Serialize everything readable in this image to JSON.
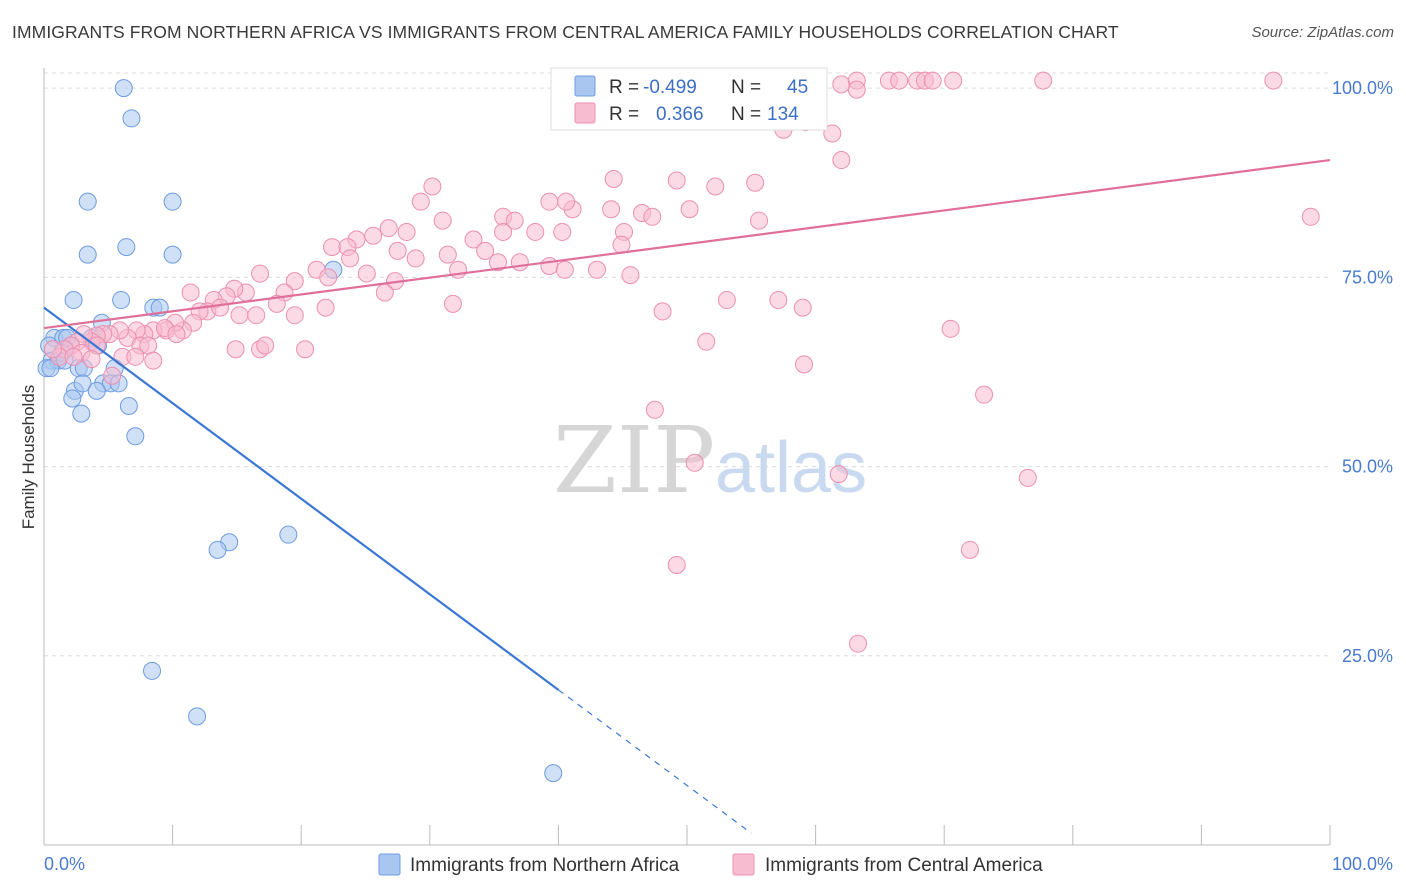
{
  "header": {
    "title": "IMMIGRANTS FROM NORTHERN AFRICA VS IMMIGRANTS FROM CENTRAL AMERICA FAMILY HOUSEHOLDS CORRELATION CHART",
    "source": "Source: ZipAtlas.com"
  },
  "watermark": {
    "zip": "ZIP",
    "atlas": "atlas"
  },
  "legend": {
    "r_label": "R =",
    "n_label": "N =",
    "entries": [
      {
        "r": "-0.499",
        "n": "45",
        "color": "#a9c6f0",
        "stroke": "#6d9ce0"
      },
      {
        "r": "0.366",
        "n": "134",
        "color": "#f7bcd0",
        "stroke": "#ec8fb0"
      }
    ]
  },
  "chart_data": {
    "type": "scatter",
    "title": "IMMIGRANTS FROM NORTHERN AFRICA VS IMMIGRANTS FROM CENTRAL AMERICA FAMILY HOUSEHOLDS CORRELATION CHART",
    "xlabel": "",
    "ylabel": "Family Households",
    "xlim": [
      0,
      100
    ],
    "ylim": [
      0,
      102
    ],
    "x_tick_labels": [
      "0.0%",
      "100.0%"
    ],
    "y_ticks": [
      {
        "value": 25,
        "label": "25.0%"
      },
      {
        "value": 50,
        "label": "50.0%"
      },
      {
        "value": 75,
        "label": "75.0%"
      },
      {
        "value": 100,
        "label": "100.0%"
      }
    ],
    "grid": "horizontal dashed",
    "series": [
      {
        "name": "Immigrants from Northern Africa",
        "color": "#a9c6f0",
        "stroke": "#6d9ce0",
        "line_color": "#3a78d4",
        "trend": {
          "x0": 0,
          "y0": 71,
          "x1": 40,
          "y1": 20.5,
          "dash_to_x": 55
        },
        "points": [
          [
            6.2,
            100
          ],
          [
            6.8,
            96
          ],
          [
            3.4,
            85
          ],
          [
            10,
            85
          ],
          [
            3.4,
            78
          ],
          [
            6.4,
            79
          ],
          [
            10,
            78
          ],
          [
            22.5,
            76
          ],
          [
            2.3,
            72
          ],
          [
            6,
            72
          ],
          [
            8.5,
            71
          ],
          [
            9,
            71
          ],
          [
            4.5,
            69
          ],
          [
            0.8,
            67
          ],
          [
            1.5,
            67
          ],
          [
            1.8,
            67
          ],
          [
            2.1,
            66
          ],
          [
            3.7,
            67
          ],
          [
            4.2,
            66
          ],
          [
            0.4,
            66
          ],
          [
            0.6,
            64
          ],
          [
            1.1,
            64
          ],
          [
            1.4,
            65
          ],
          [
            1.6,
            64
          ],
          [
            0.2,
            63
          ],
          [
            0.5,
            63
          ],
          [
            2.7,
            63
          ],
          [
            3.1,
            63
          ],
          [
            5.5,
            63
          ],
          [
            4.6,
            61
          ],
          [
            5.2,
            61
          ],
          [
            5.8,
            61
          ],
          [
            2.4,
            60
          ],
          [
            3,
            61
          ],
          [
            4.1,
            60
          ],
          [
            2.2,
            59
          ],
          [
            6.6,
            58
          ],
          [
            2.9,
            57
          ],
          [
            7.1,
            54
          ],
          [
            14.4,
            40
          ],
          [
            13.5,
            39
          ],
          [
            19,
            41
          ],
          [
            8.4,
            23
          ],
          [
            11.9,
            17
          ],
          [
            39.6,
            9.5
          ]
        ]
      },
      {
        "name": "Immigrants from Central America",
        "color": "#f7bcd0",
        "stroke": "#ec8fb0",
        "line_color": "#e0709a",
        "trend": {
          "x0": 0,
          "y0": 68.3,
          "x1": 100,
          "y1": 90.5
        },
        "points": [
          [
            55.8,
            101
          ],
          [
            56.4,
            101
          ],
          [
            62,
            100.5
          ],
          [
            63.2,
            101
          ],
          [
            65.7,
            101
          ],
          [
            66.5,
            101
          ],
          [
            67.9,
            101
          ],
          [
            68.5,
            101
          ],
          [
            69.1,
            101
          ],
          [
            70.7,
            101
          ],
          [
            77.7,
            101
          ],
          [
            95.6,
            101
          ],
          [
            63.2,
            99.8
          ],
          [
            59.2,
            95.5
          ],
          [
            57.5,
            94.5
          ],
          [
            61.3,
            94
          ],
          [
            30.2,
            87
          ],
          [
            44.3,
            88
          ],
          [
            49.2,
            87.8
          ],
          [
            52.2,
            87
          ],
          [
            55.3,
            87.5
          ],
          [
            29.3,
            85
          ],
          [
            39.3,
            85
          ],
          [
            41.1,
            84
          ],
          [
            40.6,
            85
          ],
          [
            44.1,
            84
          ],
          [
            46.5,
            83.5
          ],
          [
            50.2,
            84
          ],
          [
            55.6,
            82.5
          ],
          [
            47.3,
            83
          ],
          [
            35.7,
            83
          ],
          [
            36.6,
            82.5
          ],
          [
            35.7,
            81
          ],
          [
            38.2,
            81
          ],
          [
            31,
            82.5
          ],
          [
            26.8,
            81.5
          ],
          [
            28.2,
            81
          ],
          [
            24.3,
            80
          ],
          [
            25.6,
            80.5
          ],
          [
            22.4,
            79
          ],
          [
            23.6,
            79
          ],
          [
            27.5,
            78.5
          ],
          [
            28.9,
            77.5
          ],
          [
            33.4,
            80
          ],
          [
            31.4,
            78
          ],
          [
            40.3,
            81
          ],
          [
            34.3,
            78.5
          ],
          [
            45.1,
            81
          ],
          [
            44.9,
            79.3
          ],
          [
            32.2,
            76
          ],
          [
            35.3,
            77
          ],
          [
            37,
            77
          ],
          [
            39.3,
            76.5
          ],
          [
            40.5,
            76
          ],
          [
            43,
            76
          ],
          [
            45.6,
            75.3
          ],
          [
            23.8,
            77.5
          ],
          [
            25.1,
            75.5
          ],
          [
            27.3,
            74.5
          ],
          [
            21.2,
            76
          ],
          [
            22.1,
            75
          ],
          [
            19.5,
            74.5
          ],
          [
            18.7,
            73
          ],
          [
            18.1,
            71.5
          ],
          [
            16.8,
            75.5
          ],
          [
            15.7,
            73
          ],
          [
            14.8,
            73.5
          ],
          [
            14.2,
            72.5
          ],
          [
            13.2,
            72
          ],
          [
            12.7,
            70.5
          ],
          [
            12.1,
            70.5
          ],
          [
            13.7,
            71
          ],
          [
            15.2,
            70
          ],
          [
            16.5,
            70
          ],
          [
            19.5,
            70
          ],
          [
            26.5,
            73
          ],
          [
            31.8,
            71.5
          ],
          [
            21.9,
            71
          ],
          [
            11.6,
            69
          ],
          [
            10.8,
            68
          ],
          [
            10.2,
            69
          ],
          [
            9.5,
            68
          ],
          [
            8.5,
            68
          ],
          [
            7.8,
            67.5
          ],
          [
            7.2,
            68
          ],
          [
            6.5,
            67
          ],
          [
            5.9,
            68
          ],
          [
            5.1,
            67.5
          ],
          [
            4.6,
            67.5
          ],
          [
            4.1,
            67.3
          ],
          [
            3.7,
            66.5
          ],
          [
            3.1,
            67.5
          ],
          [
            2.6,
            66.5
          ],
          [
            2.1,
            66
          ],
          [
            1.6,
            65.5
          ],
          [
            1.2,
            64.5
          ],
          [
            0.7,
            65.5
          ],
          [
            2.9,
            65
          ],
          [
            4.1,
            66
          ],
          [
            6.1,
            64.5
          ],
          [
            7.5,
            66
          ],
          [
            8.1,
            66
          ],
          [
            9.4,
            68.3
          ],
          [
            10.3,
            67.5
          ],
          [
            5.3,
            62
          ],
          [
            8.5,
            64
          ],
          [
            14.9,
            65.5
          ],
          [
            16.8,
            65.5
          ],
          [
            17.2,
            66
          ],
          [
            20.3,
            65.5
          ],
          [
            11.4,
            73
          ],
          [
            7.1,
            64.5
          ],
          [
            3.7,
            64.2
          ],
          [
            2.3,
            64.5
          ],
          [
            59,
            71
          ],
          [
            48.1,
            70.5
          ],
          [
            57.1,
            72
          ],
          [
            53.1,
            72
          ],
          [
            70.5,
            68.2
          ],
          [
            51.5,
            66.5
          ],
          [
            59.1,
            63.5
          ],
          [
            47.5,
            57.5
          ],
          [
            73.1,
            59.5
          ],
          [
            50.6,
            50.5
          ],
          [
            61.8,
            49
          ],
          [
            76.5,
            48.5
          ],
          [
            72,
            39
          ],
          [
            49.2,
            37
          ],
          [
            63.3,
            26.6
          ],
          [
            62,
            90.5
          ],
          [
            98.5,
            83
          ]
        ]
      }
    ]
  },
  "bottom_legend": {
    "items": [
      {
        "label": "Immigrants from Northern Africa",
        "color": "#a9c6f0",
        "stroke": "#6d9ce0"
      },
      {
        "label": "Immigrants from Central America",
        "color": "#f7bcd0",
        "stroke": "#ec8fb0"
      }
    ]
  }
}
